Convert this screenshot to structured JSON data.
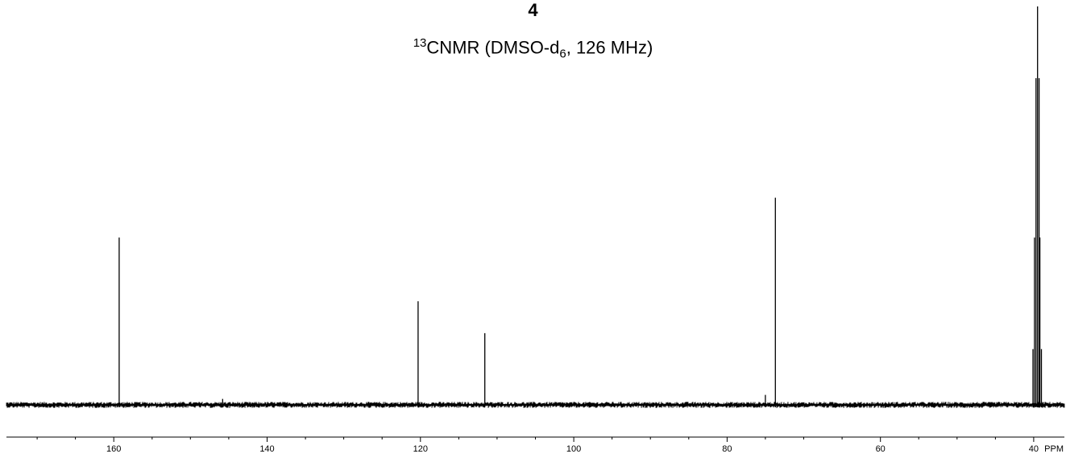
{
  "chart_data": {
    "type": "line",
    "title": "4",
    "subtitle": {
      "sup": "13",
      "main": "CNMR (DMSO-d",
      "sub": "6",
      "rest": ", 126 MHz)"
    },
    "xlabel": "PPM",
    "ylabel": "",
    "x_reversed": true,
    "xlim": [
      174,
      36
    ],
    "ylim": [
      0,
      100
    ],
    "x_ticks": [
      {
        "value": 160,
        "label": "160"
      },
      {
        "value": 140,
        "label": "140"
      },
      {
        "value": 120,
        "label": "120"
      },
      {
        "value": 100,
        "label": "100"
      },
      {
        "value": 80,
        "label": "80"
      },
      {
        "value": 60,
        "label": "60"
      },
      {
        "value": 40,
        "label": "40"
      }
    ],
    "minor_tick_step": 5,
    "grid": false,
    "legend": "none",
    "baseline": 0,
    "noise_amplitude": 0.6,
    "peaks": [
      {
        "ppm": 159.3,
        "height": 42.0
      },
      {
        "ppm": 145.8,
        "height": 1.5
      },
      {
        "ppm": 120.3,
        "height": 26.0
      },
      {
        "ppm": 111.6,
        "height": 18.0
      },
      {
        "ppm": 75.0,
        "height": 2.5
      },
      {
        "ppm": 73.7,
        "height": 52.0
      },
      {
        "ppm": 40.1,
        "height": 14.0
      },
      {
        "ppm": 39.9,
        "height": 42.0
      },
      {
        "ppm": 39.7,
        "height": 82.0
      },
      {
        "ppm": 39.5,
        "height": 100.0
      },
      {
        "ppm": 39.3,
        "height": 82.0
      },
      {
        "ppm": 39.2,
        "height": 42.0
      },
      {
        "ppm": 39.0,
        "height": 14.0
      }
    ],
    "color": "#000000"
  }
}
